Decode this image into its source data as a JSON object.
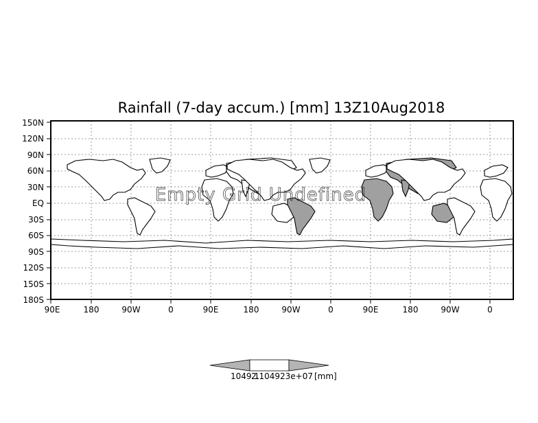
{
  "title": "Rainfall (7-day accum.) [mm] 13Z10Aug2018",
  "watermark": "Empty Grid Undefined",
  "y_ticks": [
    "150N",
    "120N",
    "90N",
    "60N",
    "30N",
    "EQ",
    "30S",
    "60S",
    "90S",
    "120S",
    "150S",
    "180S"
  ],
  "x_ticks": [
    "90E",
    "180",
    "90W",
    "0",
    "90E",
    "180",
    "90W",
    "0",
    "90E",
    "180",
    "90W",
    "0"
  ],
  "colorbar": {
    "label": "1049.1",
    "label_overlap": "2.104923e+07",
    "unit": "[mm]"
  },
  "colors": {
    "land_fill": "#a0a0a0",
    "grid": "#9a9a9a",
    "frame": "#000000",
    "colorbar_arrow": "#b4b4b4"
  }
}
